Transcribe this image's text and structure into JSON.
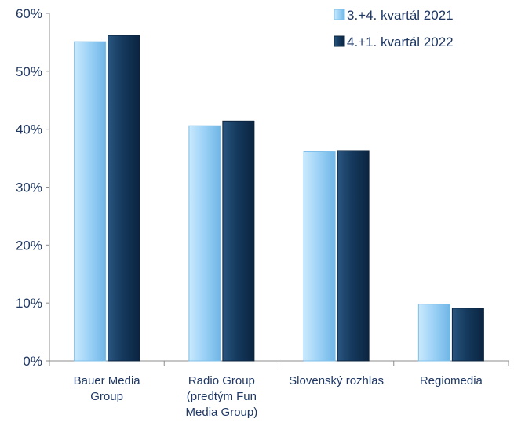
{
  "chart_data": {
    "type": "bar",
    "categories": [
      [
        "Bauer Media",
        "Group"
      ],
      [
        "Radio Group",
        "(predtým Fun",
        "Media Group)"
      ],
      [
        "Slovenský rozhlas"
      ],
      [
        "Regiomedia"
      ]
    ],
    "series": [
      {
        "name": "3.+4. kvartál 2021",
        "values": [
          55.1,
          40.6,
          36.1,
          9.8
        ],
        "color": "#9fd3f7"
      },
      {
        "name": "4.+1. kvartál 2022",
        "values": [
          56.2,
          41.4,
          36.3,
          9.1
        ],
        "color": "#153a5e"
      }
    ],
    "yticks": [
      "0%",
      "10%",
      "20%",
      "30%",
      "40%",
      "50%",
      "60%"
    ],
    "ylim": [
      0,
      60
    ],
    "grid": false,
    "legend": "top-right",
    "title": "",
    "xlabel": "",
    "ylabel": ""
  }
}
